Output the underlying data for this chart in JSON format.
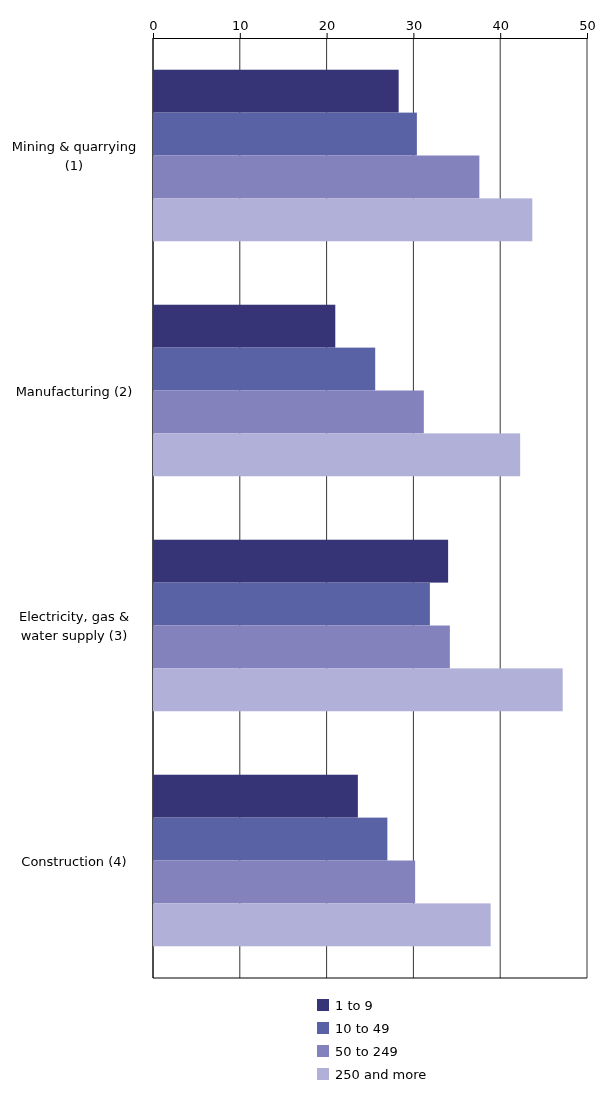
{
  "chart_data": {
    "type": "bar",
    "orientation": "horizontal",
    "categories": [
      "Mining & quarrying (1)",
      "Manufacturing (2)",
      "Electricity, gas & water supply (3)",
      "Construction (4)"
    ],
    "series": [
      {
        "name": "1 to 9",
        "color": "#363377",
        "values": [
          28.3,
          21.0,
          34.0,
          23.6
        ]
      },
      {
        "name": "10 to 49",
        "color": "#5a62a6",
        "values": [
          30.4,
          25.6,
          31.9,
          27.0
        ]
      },
      {
        "name": "50 to 249",
        "color": "#8482bd",
        "values": [
          37.6,
          31.2,
          34.2,
          30.2
        ]
      },
      {
        "name": "250 and more",
        "color": "#b1b0d8",
        "values": [
          43.7,
          42.3,
          47.2,
          38.9
        ]
      }
    ],
    "xlim": [
      0,
      50
    ],
    "xticks": [
      0,
      10,
      20,
      30,
      40,
      50
    ],
    "grid": "x",
    "legend": "bottom"
  }
}
